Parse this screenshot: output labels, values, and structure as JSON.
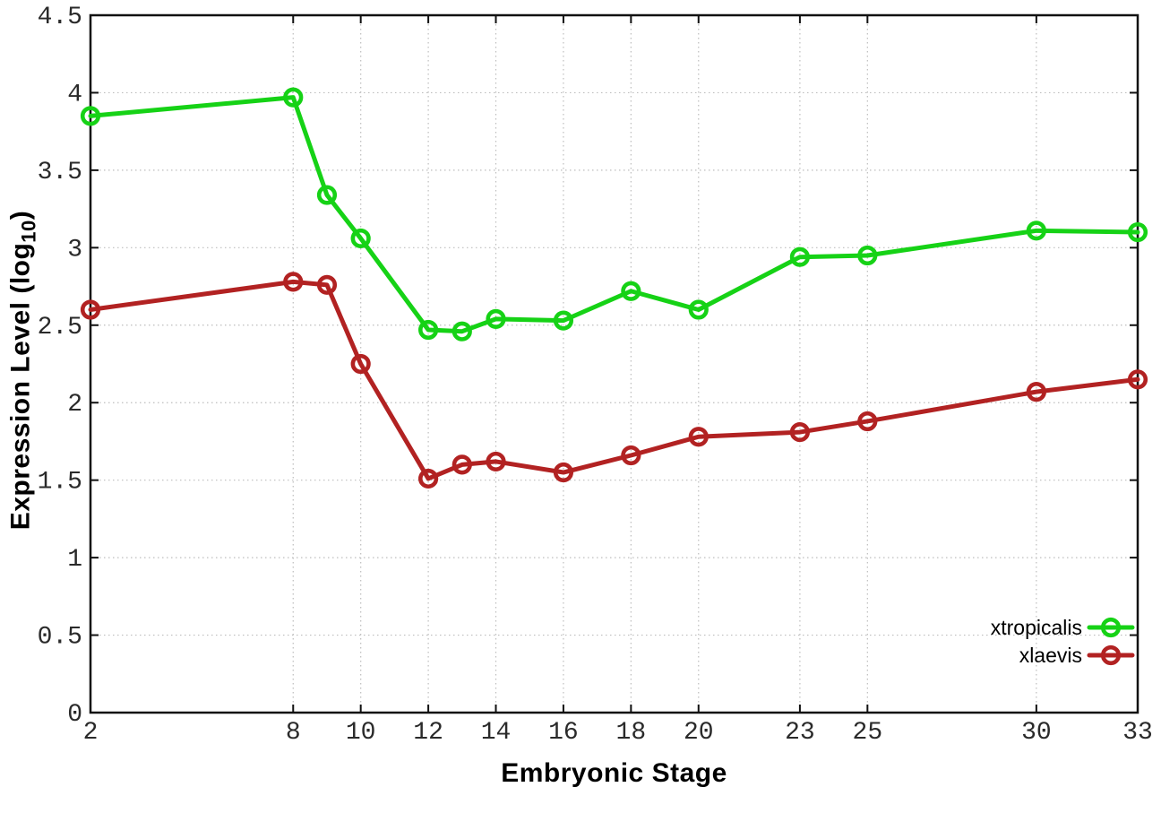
{
  "chart_data": {
    "type": "line",
    "xlabel": "Embryonic Stage",
    "ylabel": "Expression Level (log10)",
    "ylabel_parts": {
      "main": "Expression Level (log",
      "sub": "10",
      "close": ")"
    },
    "x": [
      2,
      8,
      9,
      10,
      12,
      13,
      14,
      16,
      18,
      20,
      23,
      25,
      30,
      33
    ],
    "series": [
      {
        "name": "xtropicalis",
        "color": "#16d216",
        "values": [
          3.85,
          3.97,
          3.34,
          3.06,
          2.47,
          2.46,
          2.54,
          2.53,
          2.72,
          2.6,
          2.94,
          2.95,
          3.11,
          3.1
        ]
      },
      {
        "name": "xlaevis",
        "color": "#b22222",
        "values": [
          2.6,
          2.78,
          2.76,
          2.25,
          1.51,
          1.6,
          1.62,
          1.55,
          1.66,
          1.78,
          1.81,
          1.88,
          2.07,
          2.15
        ]
      }
    ],
    "xlim": [
      2,
      33
    ],
    "ylim": [
      0,
      4.5
    ],
    "x_ticks": [
      2,
      8,
      10,
      12,
      14,
      16,
      18,
      20,
      23,
      25,
      30,
      33
    ],
    "x_tick_labels": [
      "2",
      "8",
      "10",
      "12",
      "14",
      "16",
      "18",
      "20",
      "23",
      "25",
      "30",
      "33"
    ],
    "y_ticks": [
      0,
      0.5,
      1,
      1.5,
      2,
      2.5,
      3,
      3.5,
      4,
      4.5
    ],
    "y_tick_labels": [
      "0",
      "0.5",
      "1",
      "1.5",
      "2",
      "2.5",
      "3",
      "3.5",
      "4",
      "4.5"
    ],
    "grid": true,
    "legend_position": "bottom-right",
    "colors": {
      "background": "#ffffff",
      "grid": "#bdbdbd",
      "axis": "#111111",
      "tick_label": "#2a2a2a",
      "legend_text": "#000000"
    }
  }
}
